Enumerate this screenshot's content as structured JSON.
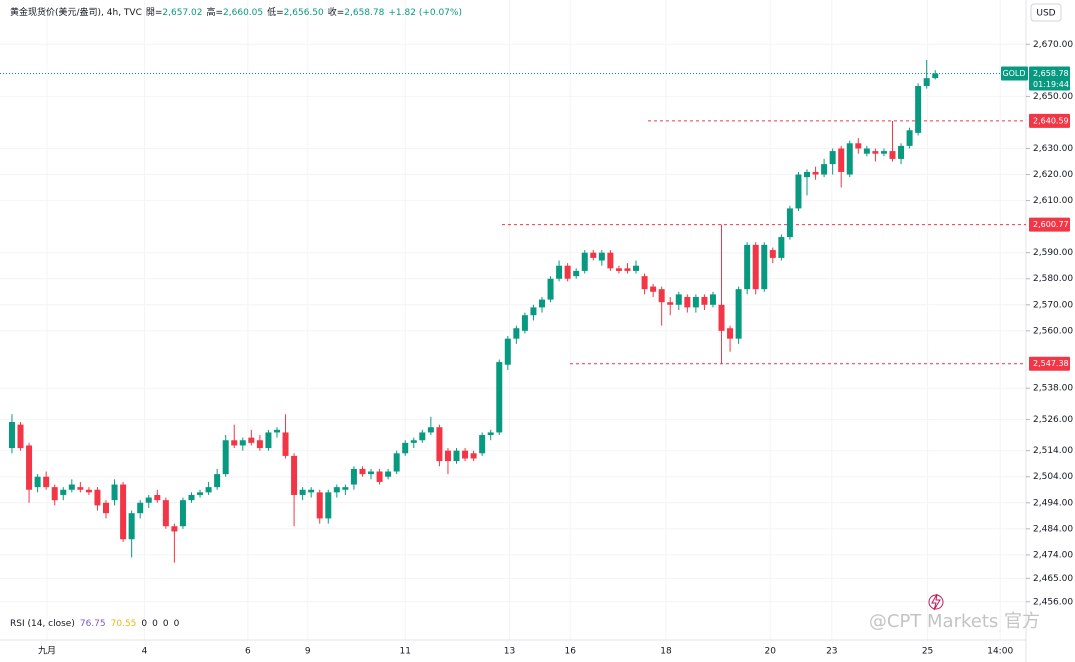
{
  "chart_data": {
    "type": "candlestick",
    "header": {
      "title": "黄金现货价(美元/盎司), 4h, TVC",
      "fields": [
        {
          "key": "開=",
          "value": "2,657.02"
        },
        {
          "key": "高=",
          "value": "2,660.05"
        },
        {
          "key": "低=",
          "value": "2,656.50"
        },
        {
          "key": "收=",
          "value": "2,658.78"
        }
      ],
      "change": "+1.82 (+0.07%)"
    },
    "currency": "USD",
    "symbol": "GOLD",
    "countdown": "01:19:44",
    "last_price": {
      "value": 2658.78,
      "label": "2,658.78"
    },
    "levels": [
      {
        "value": 2640.59,
        "label": "2,640.59"
      },
      {
        "value": 2600.77,
        "label": "2,600.77"
      },
      {
        "value": 2547.38,
        "label": "2,547.38"
      }
    ],
    "up_color": "#089981",
    "down_color": "#f23645",
    "open": [
      2515,
      2524,
      2516,
      2500,
      2504,
      2500,
      2497,
      2499,
      2500,
      2499,
      2499,
      2494,
      2495,
      2501,
      2480,
      2490,
      2494,
      2497,
      2495,
      2485,
      2485,
      2495,
      2497,
      2498,
      2500,
      2505,
      2518,
      2516,
      2519,
      2518,
      2515,
      2521,
      2521,
      2512,
      2497,
      2498,
      2498,
      2488,
      2498,
      2499,
      2501,
      2507,
      2505,
      2506,
      2504,
      2506,
      2513,
      2517,
      2518,
      2521,
      2523,
      2514,
      2510,
      2514,
      2513,
      2513,
      2520,
      2521,
      2547,
      2557,
      2560,
      2566,
      2569,
      2572,
      2580,
      2585,
      2581,
      2583,
      2590,
      2587,
      2590,
      2584,
      2584,
      2583,
      2581,
      2577,
      2576,
      2571,
      2570,
      2573,
      2569,
      2573,
      2570,
      2570,
      2561,
      2557,
      2576,
      2593,
      2576,
      2591,
      2588,
      2596,
      2607,
      2619,
      2621,
      2620,
      2624,
      2630,
      2620,
      2632,
      2628,
      2629,
      2628,
      2629,
      2626,
      2631,
      2636,
      2654,
      2657.02
    ],
    "high": [
      2528,
      2525,
      2517,
      2505,
      2506,
      2501,
      2500,
      2503,
      2502,
      2500,
      2500,
      2495,
      2503,
      2502,
      2491,
      2495,
      2497,
      2499,
      2496,
      2486,
      2496,
      2498,
      2499,
      2502,
      2507,
      2520,
      2524,
      2519,
      2522,
      2520,
      2522,
      2523,
      2528,
      2513,
      2500,
      2500,
      2499,
      2499,
      2501,
      2501,
      2508,
      2508,
      2507,
      2507,
      2507,
      2514,
      2518,
      2519,
      2522,
      2527,
      2524,
      2515,
      2515,
      2515,
      2514,
      2521,
      2522,
      2549,
      2558,
      2562,
      2567,
      2570,
      2573,
      2581,
      2587,
      2586,
      2584,
      2591,
      2591,
      2591,
      2591,
      2585,
      2586,
      2587,
      2582,
      2578,
      2577,
      2573,
      2575,
      2574,
      2574,
      2574,
      2575,
      2600.77,
      2562,
      2577,
      2594,
      2594,
      2594,
      2592,
      2597,
      2608,
      2621,
      2622,
      2623,
      2626,
      2630,
      2631,
      2633,
      2634,
      2631,
      2630,
      2630,
      2640.59,
      2632,
      2638,
      2655,
      2664,
      2660.05
    ],
    "low": [
      2513,
      2514,
      2494,
      2498,
      2499,
      2493,
      2495,
      2498,
      2498,
      2497,
      2491,
      2488,
      2493,
      2479,
      2473,
      2488,
      2492,
      2494,
      2484,
      2471,
      2484,
      2494,
      2496,
      2497,
      2499,
      2504,
      2515,
      2514,
      2516,
      2514,
      2514,
      2519,
      2511,
      2485,
      2495,
      2496,
      2486,
      2486,
      2496,
      2497,
      2499,
      2504,
      2503,
      2501,
      2503,
      2505,
      2512,
      2515,
      2517,
      2520,
      2508,
      2505,
      2509,
      2510,
      2510,
      2512,
      2518,
      2520,
      2545,
      2555,
      2559,
      2564,
      2567,
      2571,
      2579,
      2579,
      2580,
      2582,
      2587,
      2585,
      2583,
      2582,
      2582,
      2582,
      2574,
      2573,
      2562,
      2566,
      2568,
      2567,
      2567,
      2568,
      2569,
      2547.38,
      2552,
      2555,
      2574,
      2574,
      2575,
      2586,
      2587,
      2595,
      2606,
      2612,
      2618,
      2619,
      2620,
      2615,
      2619,
      2628,
      2627,
      2625,
      2627,
      2625,
      2624,
      2630,
      2635,
      2653,
      2656.5
    ],
    "close": [
      2525,
      2515,
      2499,
      2504,
      2500,
      2495,
      2499,
      2501,
      2499,
      2498,
      2493,
      2490,
      2501,
      2480,
      2490,
      2494,
      2496,
      2495,
      2485,
      2483,
      2495,
      2497,
      2498,
      2500,
      2505,
      2518,
      2516,
      2518,
      2517,
      2515,
      2521,
      2522,
      2512,
      2497,
      2499,
      2499,
      2488,
      2498,
      2500,
      2500,
      2507,
      2505,
      2506,
      2502,
      2506,
      2513,
      2517,
      2518,
      2521,
      2523,
      2510,
      2510,
      2514,
      2511,
      2511,
      2520,
      2521,
      2548,
      2557,
      2561,
      2566,
      2569,
      2572,
      2580,
      2585,
      2580,
      2583,
      2590,
      2588,
      2590,
      2584,
      2583,
      2583,
      2585,
      2576,
      2575,
      2571,
      2570,
      2574,
      2569,
      2573,
      2570,
      2574,
      2560,
      2557,
      2576,
      2593,
      2576,
      2593,
      2588,
      2596,
      2607,
      2620,
      2621,
      2620,
      2624,
      2629,
      2621,
      2632,
      2630,
      2630,
      2628,
      2629,
      2626,
      2631,
      2637,
      2654,
      2657,
      2658.78
    ],
    "xlim": [
      -1.4,
      118.5
    ],
    "xticks": [
      {
        "value": 4.1,
        "label": "九月"
      },
      {
        "value": 15.5,
        "label": "4"
      },
      {
        "value": 27.6,
        "label": "6"
      },
      {
        "value": 34.6,
        "label": "9"
      },
      {
        "value": 46,
        "label": "11"
      },
      {
        "value": 58.2,
        "label": "13"
      },
      {
        "value": 65.3,
        "label": "16"
      },
      {
        "value": 76.5,
        "label": "18"
      },
      {
        "value": 88.7,
        "label": "20"
      },
      {
        "value": 95.9,
        "label": "23"
      },
      {
        "value": 107.1,
        "label": "25"
      },
      {
        "value": 115.6,
        "label": "14:00"
      }
    ],
    "ylim": [
      2449,
      2687
    ],
    "yticks": [
      {
        "value": 2456,
        "label": "2,456.00"
      },
      {
        "value": 2465,
        "label": "2,465.00"
      },
      {
        "value": 2474,
        "label": "2,474.00"
      },
      {
        "value": 2484,
        "label": "2,484.00"
      },
      {
        "value": 2494,
        "label": "2,494.00"
      },
      {
        "value": 2504,
        "label": "2,504.00"
      },
      {
        "value": 2514,
        "label": "2,514.00"
      },
      {
        "value": 2526,
        "label": "2,526.00"
      },
      {
        "value": 2538,
        "label": "2,538.00"
      },
      {
        "value": 2560,
        "label": "2,560.00"
      },
      {
        "value": 2570,
        "label": "2,570.00"
      },
      {
        "value": 2580,
        "label": "2,580.00"
      },
      {
        "value": 2590,
        "label": "2,590.00"
      },
      {
        "value": 2610,
        "label": "2,610.00"
      },
      {
        "value": 2620,
        "label": "2,620.00"
      },
      {
        "value": 2630,
        "label": "2,630.00"
      },
      {
        "value": 2650,
        "label": "2,650.00"
      },
      {
        "value": 2670,
        "label": "2,670.00"
      }
    ],
    "grid": true,
    "rsi": {
      "title": "RSI (14, close)",
      "values": [
        76.75,
        70.55,
        0,
        0,
        0,
        0
      ],
      "colors": [
        "#7e57c2",
        "#e9b816",
        "#131722",
        "#131722",
        "#131722",
        "#131722"
      ]
    },
    "watermark": "@CPT Markets 官方"
  }
}
